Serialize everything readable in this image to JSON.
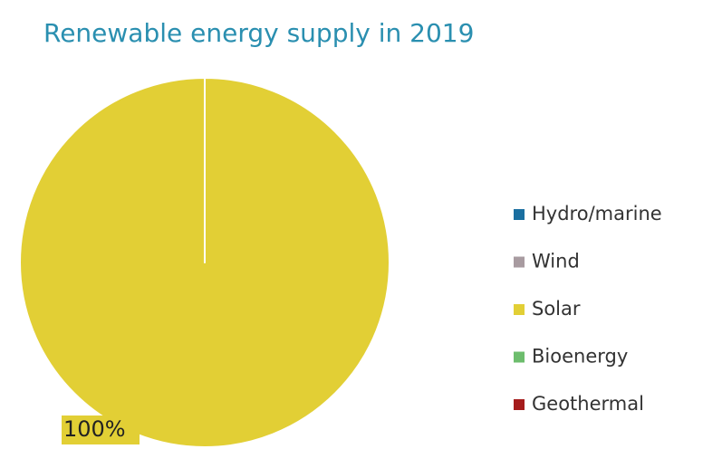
{
  "chart_data": {
    "type": "pie",
    "title": "Renewable energy supply in 2019",
    "categories": [
      "Hydro/marine",
      "Wind",
      "Solar",
      "Bioenergy",
      "Geothermal"
    ],
    "values": [
      0,
      0,
      100,
      0,
      0
    ],
    "value_labels": [
      null,
      null,
      "100%",
      null,
      null
    ],
    "colors": [
      "#1a6fa0",
      "#a89ba0",
      "#e2cf35",
      "#6dbd6d",
      "#a51c1c"
    ],
    "legend": "right"
  }
}
